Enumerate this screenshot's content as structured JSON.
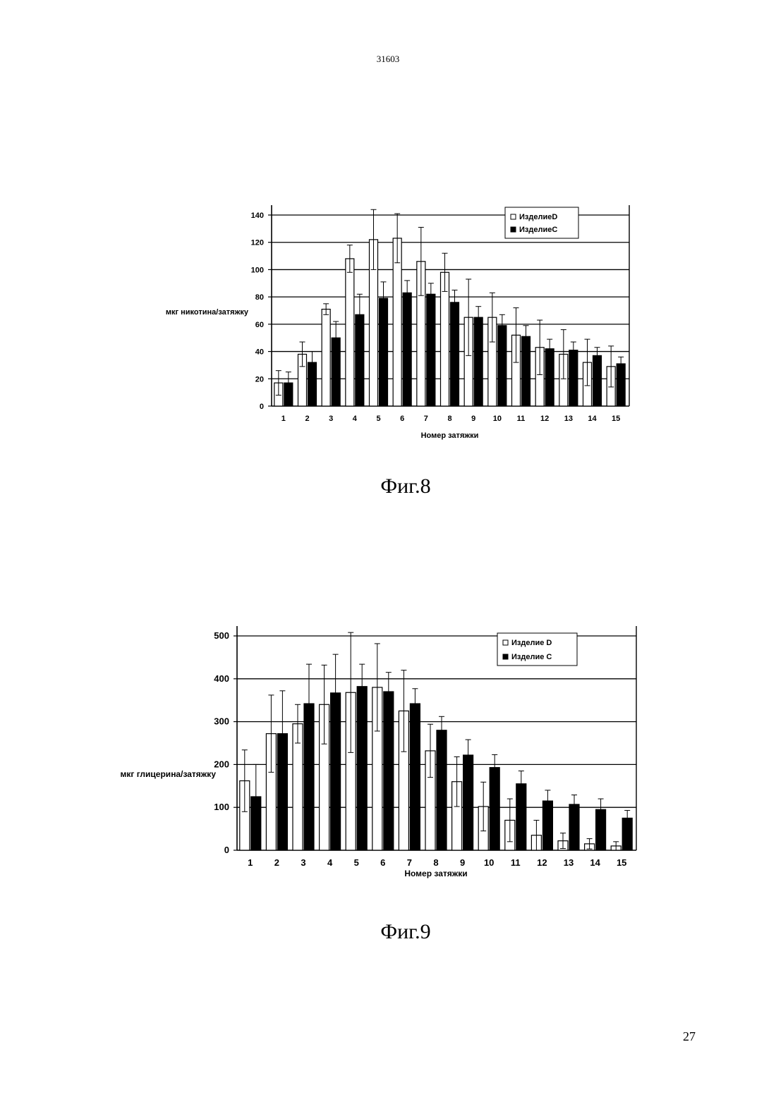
{
  "document_number": "31603",
  "page_number": "27",
  "chart_data": [
    {
      "type": "bar",
      "caption": "Фиг.8",
      "xlabel": "Номер затяжки",
      "ylabel": "мкг никотина/затяжку",
      "categories": [
        "1",
        "2",
        "3",
        "4",
        "5",
        "6",
        "7",
        "8",
        "9",
        "10",
        "11",
        "12",
        "13",
        "14",
        "15"
      ],
      "ylim": [
        0,
        140
      ],
      "yticks": [
        "0",
        "20",
        "40",
        "60",
        "80",
        "100",
        "120",
        "140"
      ],
      "grid": true,
      "legend_position": "top-right",
      "series": [
        {
          "name": "ИзделиеD",
          "color": "#ffffff",
          "values": [
            17,
            38,
            71,
            108,
            122,
            123,
            106,
            98,
            65,
            65,
            52,
            43,
            38,
            32,
            29
          ],
          "errors": [
            9,
            9,
            4,
            10,
            22,
            18,
            25,
            14,
            28,
            18,
            20,
            20,
            18,
            17,
            15
          ]
        },
        {
          "name": "ИзделиеC",
          "color": "#000000",
          "values": [
            17,
            32,
            50,
            67,
            79,
            83,
            82,
            76,
            65,
            59,
            51,
            42,
            41,
            37,
            31
          ],
          "errors": [
            8,
            8,
            12,
            15,
            12,
            9,
            8,
            9,
            8,
            8,
            8,
            7,
            6,
            6,
            5
          ]
        }
      ]
    },
    {
      "type": "bar",
      "caption": "Фиг.9",
      "xlabel": "Номер затяжки",
      "ylabel": "мкг глицерина/затяжку",
      "categories": [
        "1",
        "2",
        "3",
        "4",
        "5",
        "6",
        "7",
        "8",
        "9",
        "10",
        "11",
        "12",
        "13",
        "14",
        "15"
      ],
      "ylim": [
        0,
        500
      ],
      "yticks": [
        "0",
        "100",
        "200",
        "300",
        "400",
        "500"
      ],
      "grid": true,
      "legend_position": "top-right",
      "series": [
        {
          "name": "Изделие D",
          "color": "#ffffff",
          "values": [
            162,
            272,
            295,
            340,
            368,
            380,
            325,
            232,
            160,
            102,
            70,
            35,
            22,
            15,
            10
          ],
          "errors": [
            72,
            90,
            45,
            92,
            140,
            102,
            95,
            62,
            58,
            57,
            50,
            35,
            18,
            12,
            10
          ]
        },
        {
          "name": "Изделие C",
          "color": "#000000",
          "values": [
            125,
            272,
            342,
            367,
            382,
            370,
            342,
            280,
            222,
            193,
            155,
            115,
            107,
            95,
            75
          ],
          "errors": [
            75,
            100,
            92,
            90,
            52,
            45,
            35,
            32,
            36,
            30,
            30,
            25,
            22,
            25,
            18
          ]
        }
      ]
    }
  ]
}
